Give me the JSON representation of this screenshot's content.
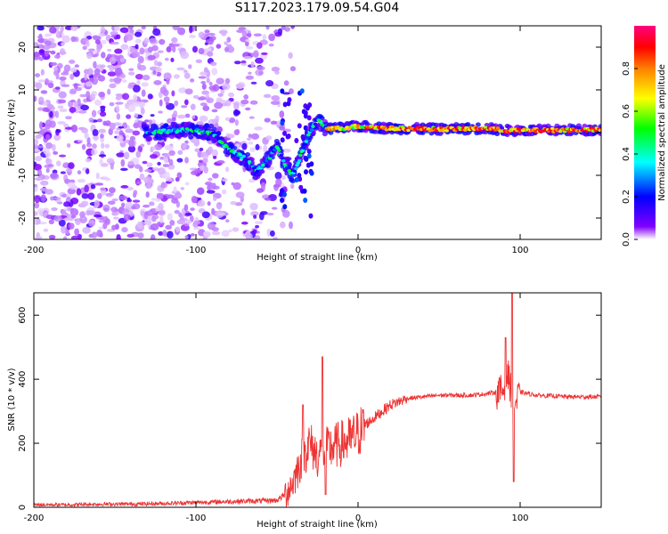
{
  "title": "S117.2023.179.09.54.G04",
  "colors": {
    "snr_line": "#ee3333",
    "axes": "#000000",
    "background": "#ffffff"
  },
  "chart_data": [
    {
      "type": "heatmap",
      "xlabel": "Height of straight line (km)",
      "ylabel": "Frequency (Hz)",
      "xlim": [
        -200,
        150
      ],
      "ylim": [
        -25,
        25
      ],
      "x_ticks": [
        -200,
        -100,
        0,
        100
      ],
      "y_ticks": [
        -20,
        -10,
        0,
        10,
        20
      ],
      "colorbar": {
        "label": "Normalized spectral amplitude",
        "range": [
          0,
          1
        ],
        "ticks": [
          0.0,
          0.2,
          0.4,
          0.6,
          0.8
        ],
        "colormap": [
          "#ffffff",
          "#8000ff",
          "#0000ff",
          "#00ffff",
          "#00ff00",
          "#ffff00",
          "#ff8000",
          "#ff0000",
          "#ff0080"
        ]
      },
      "features": [
        {
          "region": "noise",
          "x_range": [
            -200,
            -40
          ],
          "freq_range": [
            -25,
            25
          ],
          "amplitude": 0.15
        },
        {
          "region": "signal",
          "points": [
            [
              -130,
              0
            ],
            [
              -115,
              0.5
            ],
            [
              -100,
              0.5
            ],
            [
              -90,
              0
            ],
            [
              -80,
              -4
            ],
            [
              -70,
              -6
            ],
            [
              -62,
              -9
            ],
            [
              -55,
              -6
            ],
            [
              -50,
              -3
            ],
            [
              -45,
              -8
            ],
            [
              -40,
              -10
            ],
            [
              -35,
              -5
            ],
            [
              -30,
              0
            ],
            [
              -25,
              3
            ],
            [
              -20,
              1
            ],
            [
              -10,
              1
            ],
            [
              0,
              1.5
            ],
            [
              20,
              1
            ],
            [
              50,
              0.8
            ],
            [
              80,
              1
            ],
            [
              90,
              0.5
            ],
            [
              100,
              0.5
            ],
            [
              150,
              0.7
            ]
          ]
        },
        {
          "region": "vertical_streaks",
          "x": [
            -35,
            -45,
            -30
          ],
          "freq_range": [
            -20,
            10
          ]
        }
      ]
    },
    {
      "type": "line",
      "xlabel": "Height of straight line (km)",
      "ylabel": "SNR (10 * v/v)",
      "xlim": [
        -200,
        150
      ],
      "ylim": [
        0,
        670
      ],
      "x_ticks": [
        -200,
        -100,
        0,
        100
      ],
      "y_ticks": [
        0,
        200,
        400,
        600
      ],
      "series": [
        {
          "x": [
            -200,
            -180,
            -160,
            -140,
            -120,
            -100,
            -80,
            -60,
            -50,
            -45,
            -40,
            -35,
            -30,
            -25,
            -20,
            -15,
            -10,
            -5,
            0,
            5,
            10,
            15,
            20,
            30,
            40,
            50,
            60,
            70,
            80,
            85,
            88,
            90,
            92,
            94,
            96,
            98,
            100,
            105,
            110,
            120,
            130,
            140,
            150
          ],
          "y": [
            8,
            8,
            10,
            10,
            12,
            15,
            18,
            20,
            22,
            40,
            80,
            150,
            200,
            160,
            180,
            190,
            200,
            210,
            230,
            260,
            280,
            300,
            320,
            340,
            345,
            350,
            350,
            350,
            355,
            360,
            360,
            370,
            420,
            380,
            320,
            330,
            360,
            355,
            350,
            348,
            345,
            345,
            345
          ],
          "peaks": [
            [
              -34,
              320
            ],
            [
              -22,
              470
            ],
            [
              -20,
              40
            ],
            [
              95,
              670
            ],
            [
              96,
              80
            ],
            [
              91,
              530
            ]
          ]
        }
      ]
    }
  ]
}
